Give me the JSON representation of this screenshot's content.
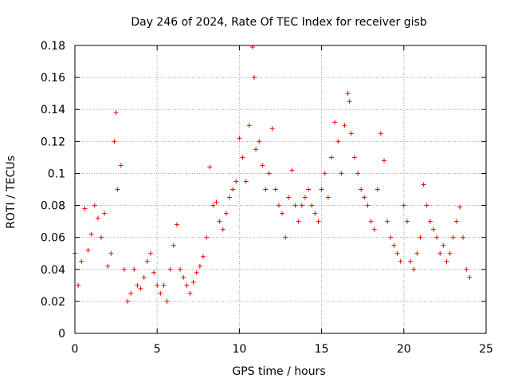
{
  "chart_data": {
    "type": "scatter",
    "title": "Day 246 of 2024, Rate Of TEC Index for receiver gisb",
    "xlabel": "GPS time / hours",
    "ylabel": "ROTI / TECUs",
    "xlim": [
      0,
      25
    ],
    "ylim": [
      0,
      0.18
    ],
    "x_ticks": [
      "0",
      "5",
      "10",
      "15",
      "20",
      "25"
    ],
    "y_ticks": [
      "0",
      "0.02",
      "0.04",
      "0.06",
      "0.08",
      "0.1",
      "0.12",
      "0.14",
      "0.16",
      "0.18"
    ],
    "grid": true,
    "marker": "+",
    "marker_color": "#ff0000",
    "series": [
      {
        "x": [
          0.0,
          0.2,
          0.4,
          0.6,
          0.8,
          1.0,
          1.2,
          1.4,
          1.6,
          1.8,
          2.0,
          2.2,
          2.4,
          2.5,
          2.6,
          2.8,
          3.0,
          3.2,
          3.4,
          3.6,
          3.8,
          4.0,
          4.2,
          4.4,
          4.6,
          4.8,
          5.0,
          5.2,
          5.4,
          5.6,
          5.8,
          6.0,
          6.2,
          6.4,
          6.6,
          6.8,
          7.0,
          7.2,
          7.4,
          7.6,
          7.8,
          8.0,
          8.2,
          8.4,
          8.6,
          8.8,
          9.0,
          9.2,
          9.4,
          9.6,
          9.8,
          10.0,
          10.2,
          10.4,
          10.6,
          10.8,
          10.9,
          11.0,
          11.2,
          11.4,
          11.6,
          11.8,
          12.0,
          12.2,
          12.4,
          12.6,
          12.8,
          13.0,
          13.2,
          13.4,
          13.6,
          13.8,
          14.0,
          14.2,
          14.4,
          14.6,
          14.8,
          15.0,
          15.2,
          15.4,
          15.6,
          15.8,
          16.0,
          16.2,
          16.4,
          16.6,
          16.7,
          16.8,
          17.0,
          17.2,
          17.4,
          17.6,
          17.8,
          18.0,
          18.2,
          18.4,
          18.6,
          18.8,
          19.0,
          19.2,
          19.4,
          19.6,
          19.8,
          20.0,
          20.2,
          20.4,
          20.6,
          20.8,
          21.0,
          21.2,
          21.4,
          21.6,
          21.8,
          22.0,
          22.2,
          22.4,
          22.6,
          22.8,
          23.0,
          23.2,
          23.4,
          23.6,
          23.8,
          24.0
        ],
        "y": [
          0.05,
          0.03,
          0.045,
          0.078,
          0.052,
          0.062,
          0.08,
          0.072,
          0.06,
          0.075,
          0.042,
          0.05,
          0.12,
          0.138,
          0.09,
          0.105,
          0.04,
          0.02,
          0.025,
          0.04,
          0.03,
          0.028,
          0.035,
          0.045,
          0.05,
          0.038,
          0.03,
          0.025,
          0.03,
          0.02,
          0.04,
          0.055,
          0.068,
          0.04,
          0.035,
          0.03,
          0.025,
          0.032,
          0.038,
          0.042,
          0.048,
          0.06,
          0.104,
          0.08,
          0.082,
          0.07,
          0.065,
          0.075,
          0.085,
          0.09,
          0.095,
          0.122,
          0.11,
          0.095,
          0.13,
          0.179,
          0.16,
          0.115,
          0.12,
          0.105,
          0.09,
          0.1,
          0.128,
          0.09,
          0.08,
          0.075,
          0.06,
          0.085,
          0.102,
          0.08,
          0.07,
          0.08,
          0.085,
          0.09,
          0.08,
          0.075,
          0.07,
          0.09,
          0.1,
          0.085,
          0.11,
          0.132,
          0.12,
          0.1,
          0.13,
          0.15,
          0.145,
          0.125,
          0.11,
          0.1,
          0.09,
          0.085,
          0.08,
          0.07,
          0.065,
          0.09,
          0.125,
          0.108,
          0.07,
          0.06,
          0.055,
          0.05,
          0.045,
          0.08,
          0.07,
          0.045,
          0.04,
          0.05,
          0.06,
          0.093,
          0.08,
          0.07,
          0.065,
          0.06,
          0.05,
          0.055,
          0.045,
          0.05,
          0.06,
          0.07,
          0.079,
          0.06,
          0.04,
          0.035
        ]
      }
    ]
  }
}
